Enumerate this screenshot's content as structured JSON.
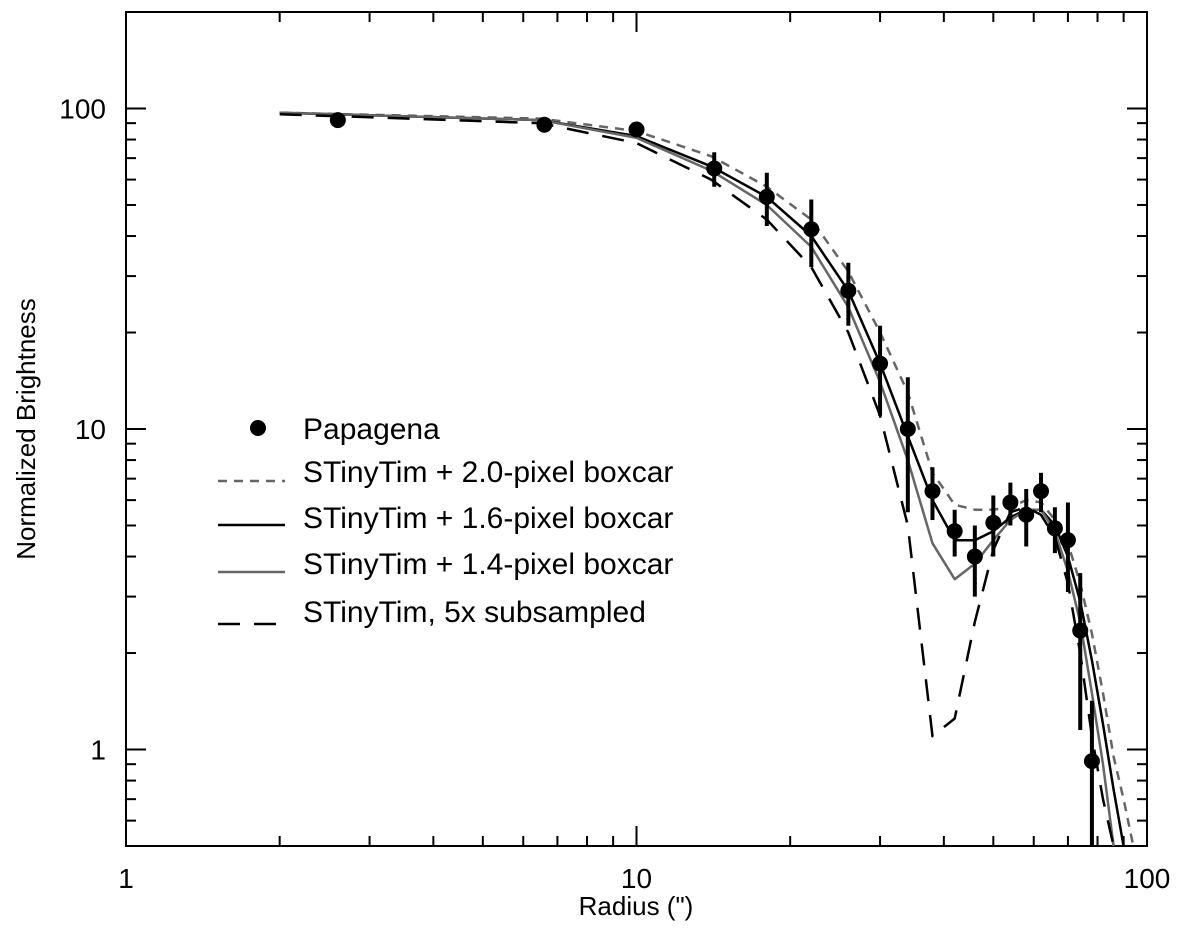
{
  "chart_data": {
    "type": "scatter",
    "xlabel": "Radius (\")",
    "ylabel": "Normalized Brightness",
    "xscale": "log",
    "yscale": "log",
    "xlim": [
      1,
      100
    ],
    "ylim": [
      0.5,
      200
    ],
    "x_ticks": [
      {
        "value": 1,
        "label": "1"
      },
      {
        "value": 10,
        "label": "10"
      },
      {
        "value": 100,
        "label": "100"
      }
    ],
    "y_ticks": [
      {
        "value": 1,
        "label": "1"
      },
      {
        "value": 10,
        "label": "10"
      },
      {
        "value": 100,
        "label": "100"
      }
    ],
    "legend_position": "center-left",
    "observed": {
      "name": "Papagena",
      "color": "#000000",
      "points": [
        {
          "x": 2.6,
          "y": 92,
          "err": 0
        },
        {
          "x": 6.6,
          "y": 89,
          "err": 0
        },
        {
          "x": 10.0,
          "y": 86,
          "err": 0
        },
        {
          "x": 14.2,
          "y": 65,
          "err": 8
        },
        {
          "x": 18.0,
          "y": 53,
          "err": 10
        },
        {
          "x": 22.0,
          "y": 42,
          "err": 10
        },
        {
          "x": 26.0,
          "y": 27,
          "err": 6
        },
        {
          "x": 30.0,
          "y": 16,
          "err": 5
        },
        {
          "x": 34.0,
          "y": 10,
          "err": 4.5
        },
        {
          "x": 38.0,
          "y": 6.4,
          "err": 1.2
        },
        {
          "x": 42.0,
          "y": 4.8,
          "err": 0.8
        },
        {
          "x": 46.0,
          "y": 4.0,
          "err": 1.0
        },
        {
          "x": 50.0,
          "y": 5.1,
          "err": 1.1
        },
        {
          "x": 54.0,
          "y": 5.9,
          "err": 0.9
        },
        {
          "x": 58.0,
          "y": 5.4,
          "err": 1.1
        },
        {
          "x": 62.0,
          "y": 6.4,
          "err": 0.9
        },
        {
          "x": 66.0,
          "y": 4.9,
          "err": 0.8
        },
        {
          "x": 70.0,
          "y": 4.5,
          "err": 1.4
        },
        {
          "x": 74.0,
          "y": 2.35,
          "err": 1.2
        },
        {
          "x": 78.0,
          "y": 0.92,
          "err": 0.5
        }
      ]
    },
    "series": [
      {
        "name": "STinyTim + 2.0-pixel boxcar",
        "color": "#666666",
        "dash": "short",
        "x": [
          2,
          6.5,
          10,
          14,
          18,
          22,
          26,
          30,
          34,
          38,
          42,
          46,
          50,
          54,
          58,
          62,
          66,
          70,
          74,
          78,
          82,
          86,
          90,
          94
        ],
        "y": [
          97,
          93,
          85,
          71,
          57,
          45,
          31,
          20,
          13,
          7.3,
          5.8,
          5.6,
          5.6,
          5.7,
          6.0,
          5.9,
          5.2,
          4.4,
          3.3,
          2.3,
          1.5,
          0.95,
          0.7,
          0.5
        ]
      },
      {
        "name": "STinyTim + 1.6-pixel boxcar",
        "color": "#000000",
        "dash": "solid",
        "x": [
          2,
          6.5,
          10,
          14,
          18,
          22,
          26,
          30,
          34,
          38,
          42,
          46,
          50,
          54,
          58,
          62,
          66,
          70,
          74,
          78,
          82,
          86,
          90
        ],
        "y": [
          97,
          92,
          82,
          66,
          53,
          40,
          27,
          16,
          9.5,
          6.0,
          4.5,
          4.5,
          4.8,
          5.3,
          5.6,
          5.6,
          5.0,
          4.0,
          2.9,
          1.9,
          1.2,
          0.75,
          0.5
        ]
      },
      {
        "name": "STinyTim + 1.4-pixel boxcar",
        "color": "#666666",
        "dash": "solid",
        "x": [
          2,
          6.5,
          10,
          14,
          18,
          22,
          26,
          30,
          34,
          38,
          42,
          46,
          50,
          54,
          58,
          62,
          66,
          70,
          74,
          78,
          82,
          86
        ],
        "y": [
          97,
          92,
          81,
          64,
          50,
          37,
          24,
          14,
          8.0,
          4.4,
          3.4,
          3.8,
          4.5,
          5.2,
          5.6,
          5.6,
          4.8,
          3.6,
          2.5,
          1.5,
          0.9,
          0.5
        ]
      },
      {
        "name": "STinyTim, 5x subsampled",
        "color": "#000000",
        "dash": "long",
        "x": [
          2,
          6.5,
          10,
          14,
          18,
          22,
          26,
          30,
          34,
          38,
          42,
          46,
          50,
          54,
          58,
          62,
          66,
          70,
          74,
          78,
          82,
          86
        ],
        "y": [
          96,
          90,
          78,
          60,
          45,
          32,
          20,
          11,
          5.0,
          1.1,
          1.25,
          2.5,
          4.2,
          5.5,
          5.7,
          5.4,
          4.6,
          3.3,
          2.0,
          1.1,
          0.7,
          0.5
        ]
      }
    ]
  }
}
